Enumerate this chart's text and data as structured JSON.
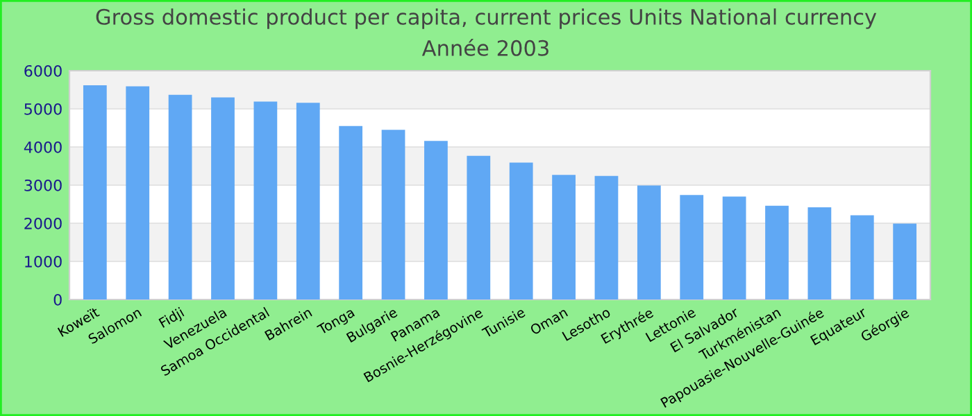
{
  "chart_data": {
    "type": "bar",
    "title": "Gross domestic product per capita, current prices Units National currency",
    "subtitle": "Année 2003",
    "categories": [
      "Koweït",
      "Salomon",
      "Fidji",
      "Venezuela",
      "Samoa Occidental",
      "Bahrein",
      "Tonga",
      "Bulgarie",
      "Panama",
      "Bosnie-Herzégovine",
      "Tunisie",
      "Oman",
      "Lesotho",
      "Erythrée",
      "Lettonie",
      "El Salvador",
      "Turkménistan",
      "Papouasie-Nouvelle-Guinée",
      "Equateur",
      "Géorgie"
    ],
    "values": [
      5620,
      5590,
      5370,
      5300,
      5190,
      5160,
      4550,
      4450,
      4160,
      3770,
      3590,
      3270,
      3240,
      2990,
      2740,
      2700,
      2460,
      2420,
      2210,
      1990
    ],
    "color": "#60a8f4",
    "ylim": [
      0,
      6000
    ],
    "yticks": [
      0,
      1000,
      2000,
      3000,
      4000,
      5000,
      6000
    ],
    "grid": "y",
    "legend": false
  }
}
